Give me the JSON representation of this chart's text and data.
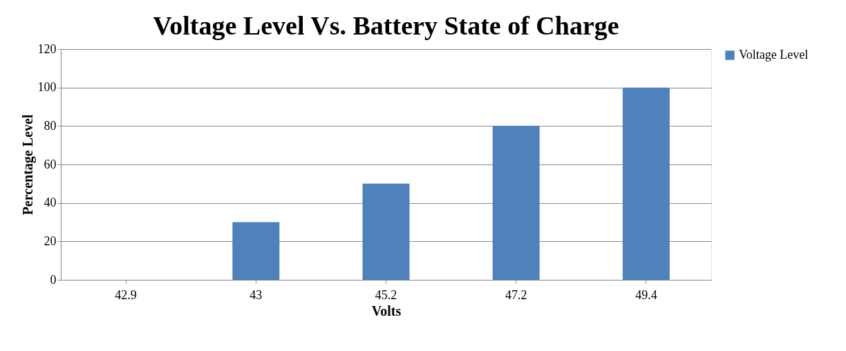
{
  "chart_data": {
    "type": "bar",
    "title": "Voltage Level Vs. Battery State of Charge",
    "xlabel": "Volts",
    "ylabel": "Percentage Level",
    "categories": [
      "42.9",
      "43",
      "45.2",
      "47.2",
      "49.4"
    ],
    "series": [
      {
        "name": "Voltage Level",
        "color": "#4f81bd",
        "values": [
          0,
          30,
          50,
          80,
          100
        ]
      }
    ],
    "ylim": [
      0,
      120
    ],
    "yticks": [
      0,
      20,
      40,
      60,
      80,
      100,
      120
    ],
    "grid": "y",
    "legend": "right"
  }
}
